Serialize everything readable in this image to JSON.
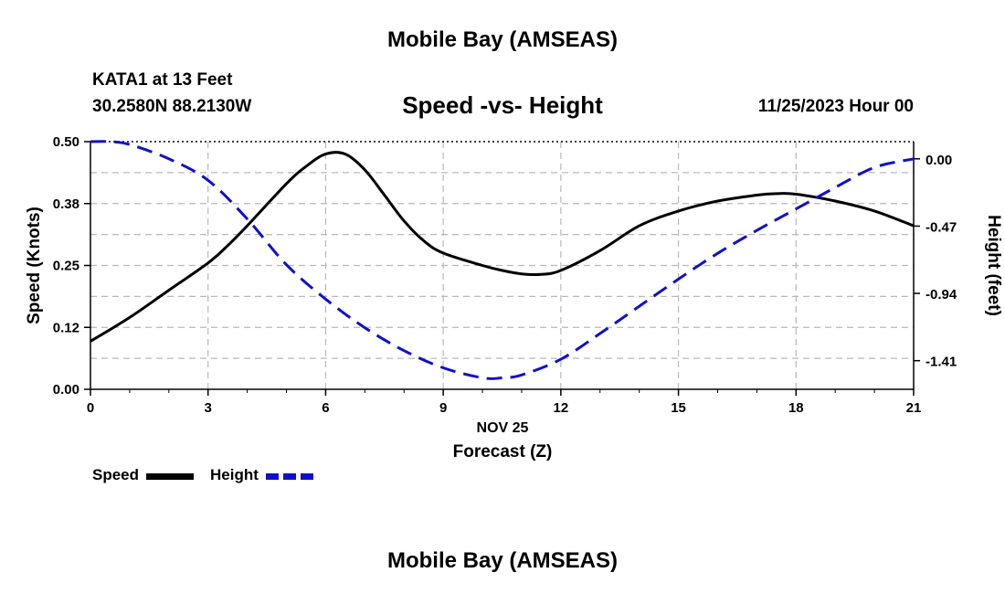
{
  "page": {
    "header_title": "Mobile Bay (AMSEAS)",
    "station": "KATA1 at 13 Feet",
    "coords": "30.2580N  88.2130W",
    "datestamp": "11/25/2023 Hour 00",
    "footer_title": "Mobile Bay (AMSEAS)"
  },
  "chart_data": {
    "type": "line",
    "title": "Speed -vs- Height",
    "xlabel": "Forecast (Z)",
    "date_label": "NOV 25",
    "ylabel": "Speed (Knots)",
    "y2label": "Height (feet)",
    "xlim": [
      0,
      21
    ],
    "ylim": [
      0,
      0.5
    ],
    "y2lim": [
      -1.61,
      0.12
    ],
    "x_ticks": [
      0,
      3,
      6,
      9,
      12,
      15,
      18,
      21
    ],
    "y_ticks": [
      "0.00",
      "0.12",
      "0.25",
      "0.38",
      "0.50"
    ],
    "y_tick_values": [
      0,
      0.125,
      0.25,
      0.375,
      0.5
    ],
    "y2_ticks": [
      "0.00",
      "-0.47",
      "-0.94",
      "-1.41"
    ],
    "y2_tick_values": [
      0,
      -0.47,
      -0.94,
      -1.41
    ],
    "grid": true,
    "legend": "bottom-left",
    "series": [
      {
        "name": "Speed",
        "color": "#000000",
        "style": "solid",
        "axis": "left",
        "x": [
          0,
          1,
          2,
          3,
          3.5,
          4,
          5,
          5.5,
          6,
          6.5,
          7,
          7.5,
          8,
          8.5,
          9,
          10,
          10.5,
          11,
          11.5,
          12,
          13,
          14,
          15,
          16,
          17,
          17.5,
          18,
          19,
          20,
          21
        ],
        "values": [
          0.097,
          0.145,
          0.2,
          0.255,
          0.29,
          0.33,
          0.415,
          0.45,
          0.475,
          0.475,
          0.443,
          0.392,
          0.34,
          0.3,
          0.275,
          0.25,
          0.24,
          0.233,
          0.232,
          0.24,
          0.28,
          0.33,
          0.36,
          0.38,
          0.392,
          0.395,
          0.394,
          0.38,
          0.36,
          0.33
        ]
      },
      {
        "name": "Height",
        "color": "#1010cc",
        "style": "dashed",
        "axis": "right",
        "x": [
          0,
          0.5,
          1,
          2,
          3,
          4,
          5,
          6,
          7,
          8,
          9,
          10,
          10.5,
          11,
          12,
          13,
          14,
          15,
          16,
          17,
          18,
          19,
          20,
          21
        ],
        "values": [
          0.12,
          0.12,
          0.1,
          0.0,
          -0.15,
          -0.42,
          -0.74,
          -0.98,
          -1.18,
          -1.34,
          -1.46,
          -1.53,
          -1.53,
          -1.51,
          -1.4,
          -1.22,
          -1.03,
          -0.84,
          -0.66,
          -0.5,
          -0.35,
          -0.2,
          -0.06,
          0.0
        ]
      }
    ]
  }
}
